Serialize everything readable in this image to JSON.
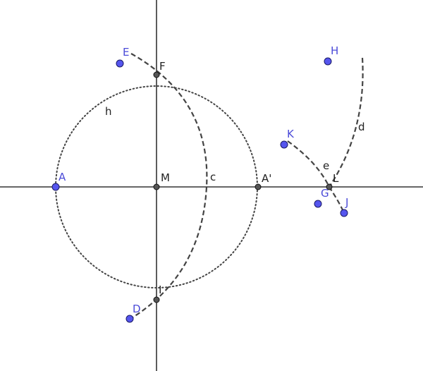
{
  "points": [
    {
      "label": "A",
      "color": "#5555ee"
    },
    {
      "label": "M",
      "color": "#555555"
    },
    {
      "label": "A'",
      "color": "#555555"
    },
    {
      "label": "F",
      "color": "#555555"
    },
    {
      "label": "I",
      "color": "#555555"
    },
    {
      "label": "E",
      "color": "#5555ee"
    },
    {
      "label": "D",
      "color": "#5555ee"
    },
    {
      "label": "H",
      "color": "#5555ee"
    },
    {
      "label": "K",
      "color": "#5555ee"
    },
    {
      "label": "G",
      "color": "#5555ee"
    },
    {
      "label": "J",
      "color": "#5555ee"
    },
    {
      "label": "L",
      "color": "#555555"
    }
  ],
  "objects": {
    "circle_h": {
      "label": "h",
      "style": "dotted"
    },
    "arc_c": {
      "label": "c",
      "style": "dashed"
    },
    "arc_d": {
      "label": "d",
      "style": "dashed"
    },
    "arc_e": {
      "label": "e",
      "style": "dashed"
    }
  }
}
